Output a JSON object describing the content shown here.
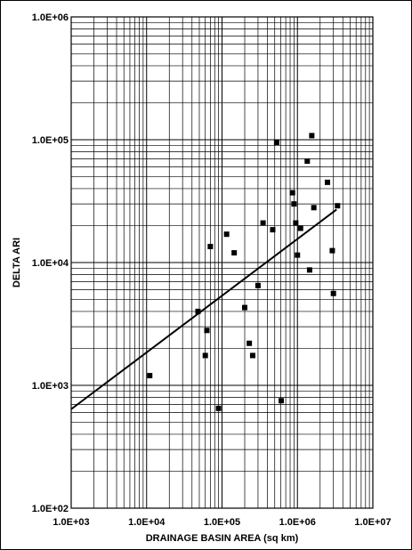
{
  "chart_data": {
    "type": "scatter",
    "title": "",
    "xlabel": "DRAINAGE BASIN AREA (sq km)",
    "ylabel": "DELTA ARI",
    "x_scale": "log",
    "y_scale": "log",
    "xlim": [
      1000,
      10000000
    ],
    "ylim": [
      100,
      1000000
    ],
    "grid": true,
    "legend": "none",
    "x_ticks": [
      {
        "value": 1000,
        "label": "1.0E+03"
      },
      {
        "value": 10000,
        "label": "1.0E+04"
      },
      {
        "value": 100000,
        "label": "1.0E+05"
      },
      {
        "value": 1000000,
        "label": "1.0E+06"
      },
      {
        "value": 10000000,
        "label": "1.0E+07"
      }
    ],
    "y_ticks": [
      {
        "value": 100,
        "label": "1.0E+02"
      },
      {
        "value": 1000,
        "label": "1.0E+03"
      },
      {
        "value": 10000,
        "label": "1.0E+04"
      },
      {
        "value": 100000,
        "label": "1.0E+05"
      },
      {
        "value": 1000000,
        "label": "1.0E+06"
      }
    ],
    "points": [
      {
        "x": 11000,
        "y": 1200
      },
      {
        "x": 48000,
        "y": 4000
      },
      {
        "x": 60000,
        "y": 1750
      },
      {
        "x": 63000,
        "y": 2800
      },
      {
        "x": 70000,
        "y": 13500
      },
      {
        "x": 90000,
        "y": 650
      },
      {
        "x": 115000,
        "y": 17000
      },
      {
        "x": 145000,
        "y": 12000
      },
      {
        "x": 200000,
        "y": 4300
      },
      {
        "x": 230000,
        "y": 2200
      },
      {
        "x": 255000,
        "y": 1750
      },
      {
        "x": 300000,
        "y": 6500
      },
      {
        "x": 350000,
        "y": 21000
      },
      {
        "x": 470000,
        "y": 18500
      },
      {
        "x": 530000,
        "y": 95000
      },
      {
        "x": 610000,
        "y": 750
      },
      {
        "x": 860000,
        "y": 37000
      },
      {
        "x": 900000,
        "y": 30000
      },
      {
        "x": 950000,
        "y": 21000
      },
      {
        "x": 1000000,
        "y": 11500
      },
      {
        "x": 1100000,
        "y": 19000
      },
      {
        "x": 1350000,
        "y": 67000
      },
      {
        "x": 1450000,
        "y": 8700
      },
      {
        "x": 1550000,
        "y": 108000
      },
      {
        "x": 1650000,
        "y": 28000
      },
      {
        "x": 2500000,
        "y": 45000
      },
      {
        "x": 2900000,
        "y": 12500
      },
      {
        "x": 3000000,
        "y": 5600
      },
      {
        "x": 3400000,
        "y": 29000
      }
    ],
    "trendline": {
      "x": [
        1000,
        3300000
      ],
      "y": [
        640,
        27000
      ]
    },
    "colors": {
      "points": "#000000",
      "grid": "#000000",
      "line": "#000000",
      "background": "#ffffff"
    }
  }
}
